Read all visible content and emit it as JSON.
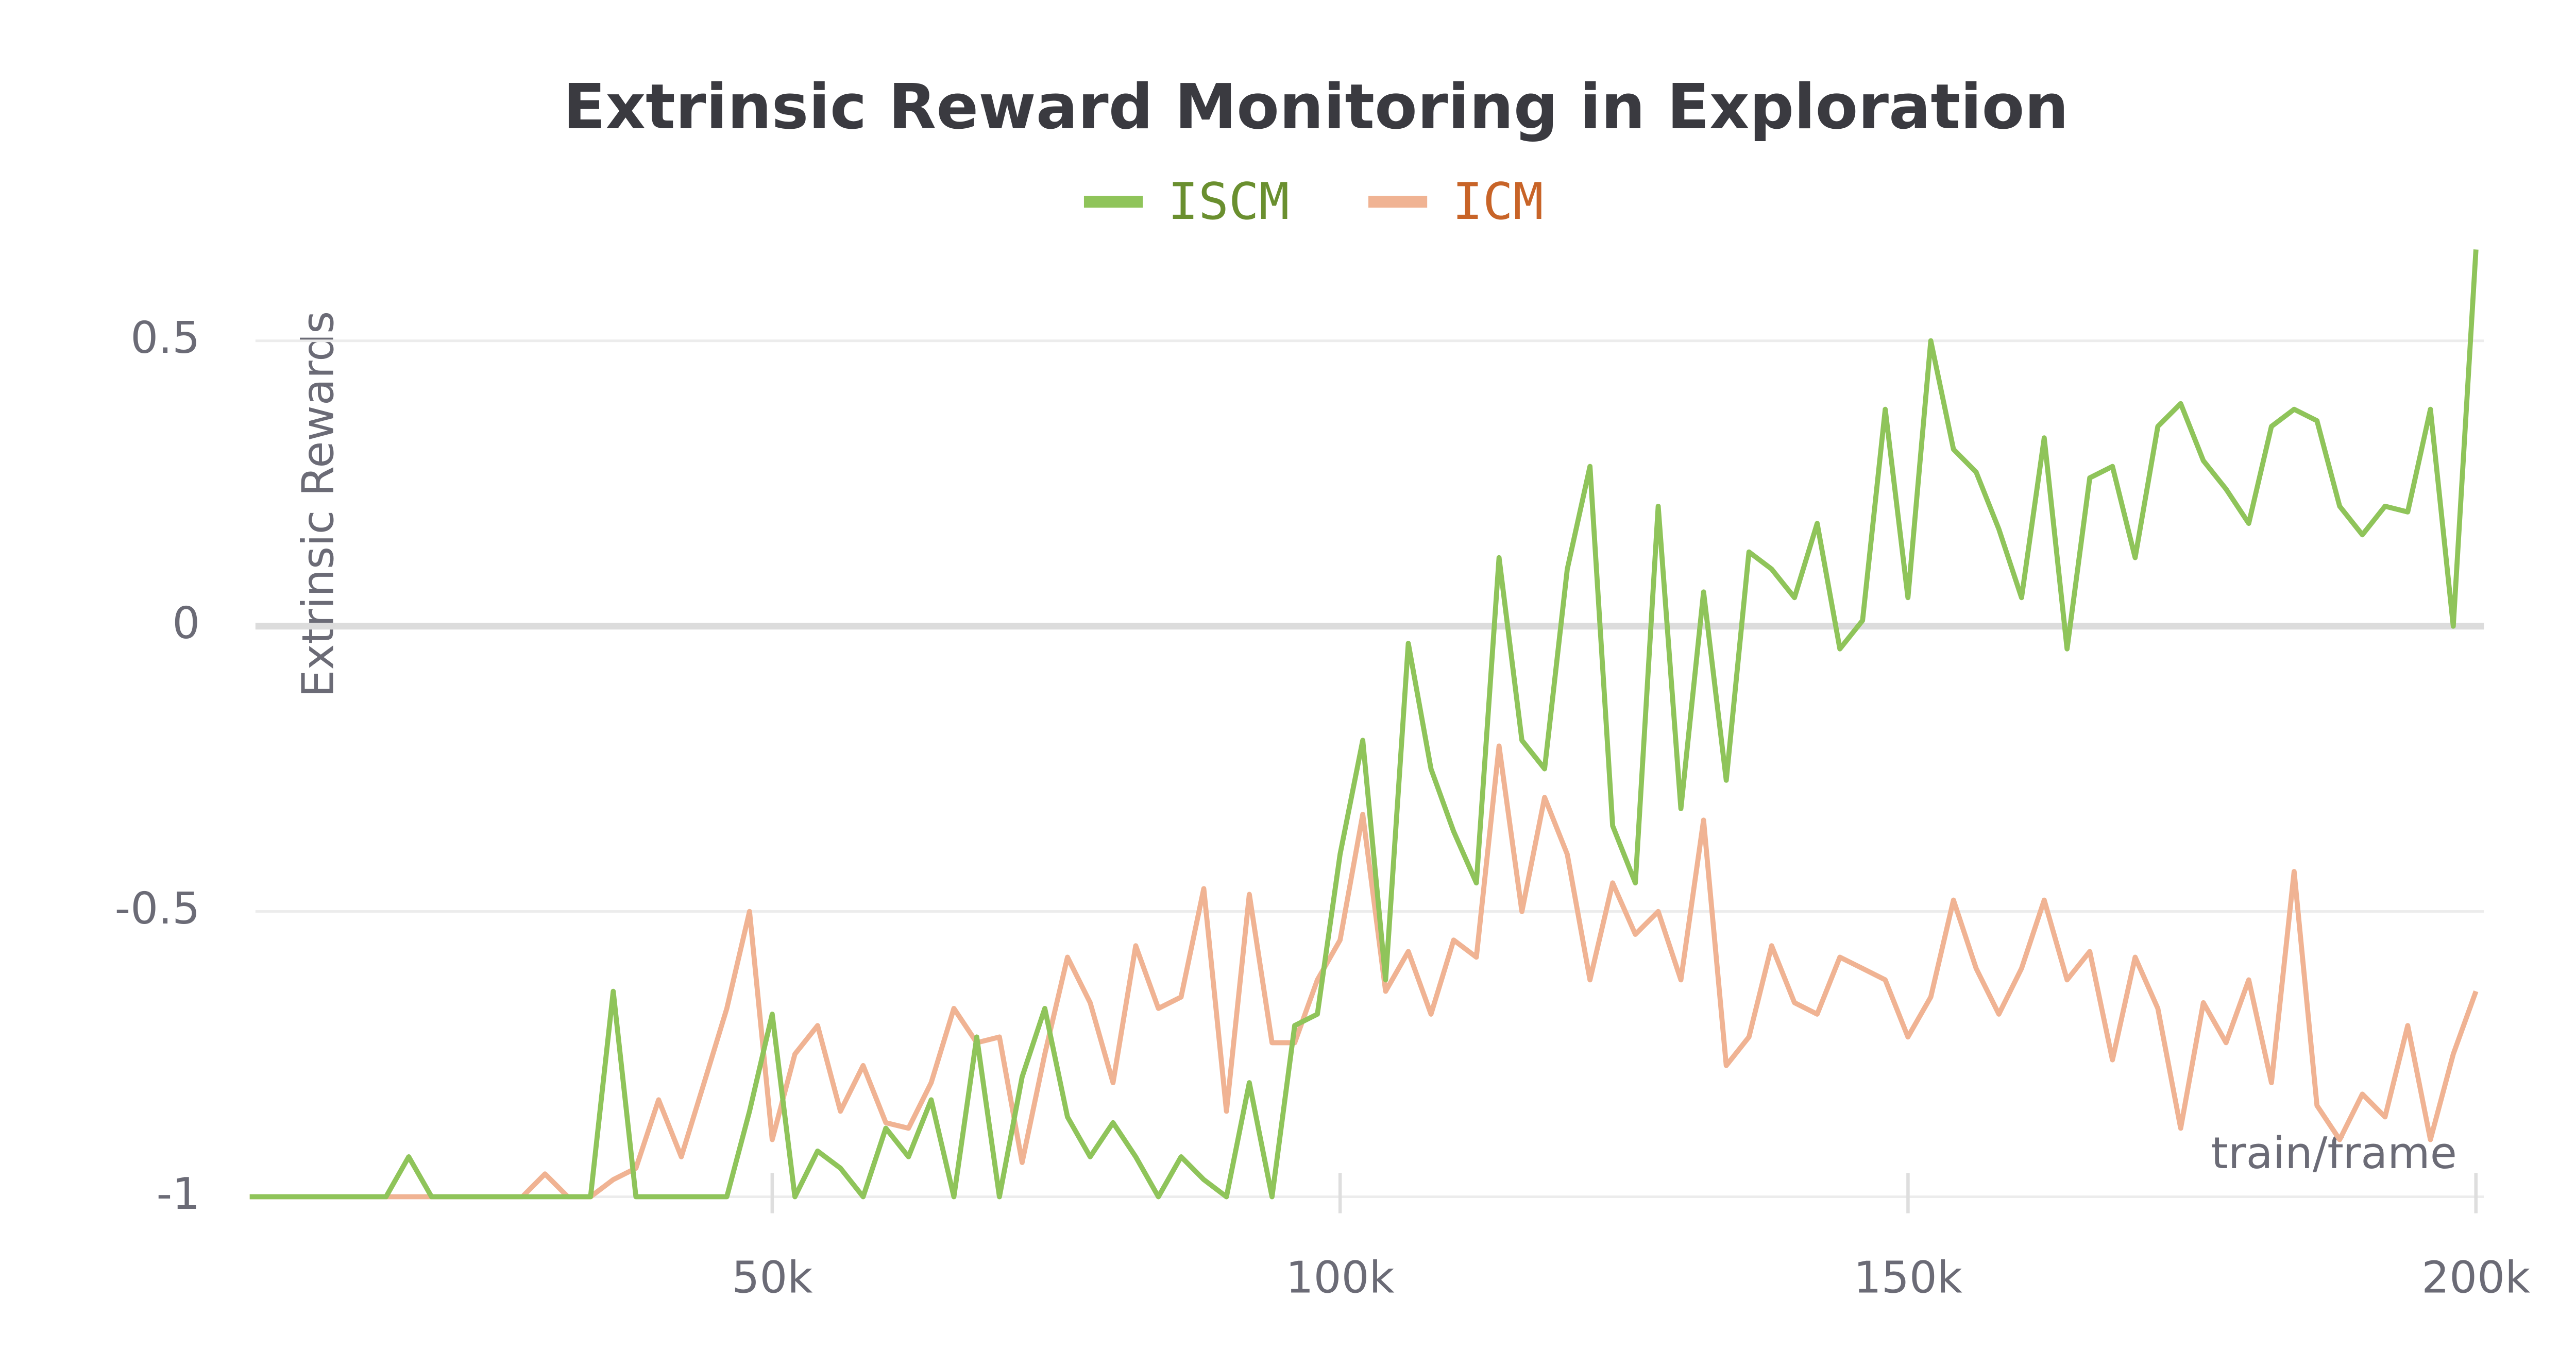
{
  "chart_data": {
    "type": "line",
    "title": "Extrinsic Reward Monitoring in Exploration",
    "y_label": "Extrinsic Rewards",
    "x_label": "train/frame",
    "x": [
      4000,
      6000,
      8000,
      10000,
      12000,
      14000,
      16000,
      18000,
      20000,
      22000,
      24000,
      26000,
      28000,
      30000,
      32000,
      34000,
      36000,
      38000,
      40000,
      42000,
      44000,
      46000,
      48000,
      50000,
      52000,
      54000,
      56000,
      58000,
      60000,
      62000,
      64000,
      66000,
      68000,
      70000,
      72000,
      74000,
      76000,
      78000,
      80000,
      82000,
      84000,
      86000,
      88000,
      90000,
      92000,
      94000,
      96000,
      98000,
      100000,
      102000,
      104000,
      106000,
      108000,
      110000,
      112000,
      114000,
      116000,
      118000,
      120000,
      122000,
      124000,
      126000,
      128000,
      130000,
      132000,
      134000,
      136000,
      138000,
      140000,
      142000,
      144000,
      146000,
      148000,
      150000,
      152000,
      154000,
      156000,
      158000,
      160000,
      162000,
      164000,
      166000,
      168000,
      170000,
      172000,
      174000,
      176000,
      178000,
      180000,
      182000,
      184000,
      186000,
      188000,
      190000,
      192000,
      194000,
      196000,
      198000,
      200000
    ],
    "series": [
      {
        "name": "ISCM",
        "color": "#8fc45a",
        "label_color": "#6a8f2f",
        "values": [
          -1,
          -1,
          -1,
          -1,
          -1,
          -1,
          -1,
          -0.93,
          -1,
          -1,
          -1,
          -1,
          -1,
          -1,
          -1,
          -1,
          -0.64,
          -1,
          -1,
          -1,
          -1,
          -1,
          -0.85,
          -0.68,
          -1,
          -0.92,
          -0.95,
          -1,
          -0.88,
          -0.93,
          -0.83,
          -1,
          -0.72,
          -1,
          -0.79,
          -0.67,
          -0.86,
          -0.93,
          -0.87,
          -0.93,
          -1,
          -0.93,
          -0.97,
          -1,
          -0.8,
          -1,
          -0.7,
          -0.68,
          -0.4,
          -0.2,
          -0.62,
          -0.03,
          -0.25,
          -0.36,
          -0.45,
          0.12,
          -0.2,
          -0.25,
          0.1,
          0.28,
          -0.35,
          -0.45,
          0.21,
          -0.32,
          0.06,
          -0.27,
          0.13,
          0.1,
          0.05,
          0.18,
          -0.04,
          0.01,
          0.38,
          0.05,
          0.5,
          0.31,
          0.27,
          0.17,
          0.05,
          0.33,
          -0.04,
          0.26,
          0.28,
          0.12,
          0.35,
          0.39,
          0.29,
          0.24,
          0.18,
          0.35,
          0.38,
          0.36,
          0.21,
          0.16,
          0.21,
          0.2,
          0.38,
          0,
          0.66
        ]
      },
      {
        "name": "ICM",
        "color": "#f0b393",
        "label_color": "#c86428",
        "values": [
          -1,
          -1,
          -1,
          -1,
          -1,
          -1,
          -1,
          -1,
          -1,
          -1,
          -1,
          -1,
          -1,
          -0.96,
          -1,
          -1,
          -0.97,
          -0.95,
          -0.83,
          -0.93,
          -0.8,
          -0.67,
          -0.5,
          -0.9,
          -0.75,
          -0.7,
          -0.85,
          -0.77,
          -0.87,
          -0.88,
          -0.8,
          -0.67,
          -0.73,
          -0.72,
          -0.94,
          -0.75,
          -0.58,
          -0.66,
          -0.8,
          -0.56,
          -0.67,
          -0.65,
          -0.46,
          -0.85,
          -0.47,
          -0.73,
          -0.73,
          -0.62,
          -0.55,
          -0.33,
          -0.64,
          -0.57,
          -0.68,
          -0.55,
          -0.58,
          -0.21,
          -0.5,
          -0.3,
          -0.4,
          -0.62,
          -0.45,
          -0.54,
          -0.5,
          -0.62,
          -0.34,
          -0.77,
          -0.72,
          -0.56,
          -0.66,
          -0.68,
          -0.58,
          -0.6,
          -0.62,
          -0.72,
          -0.65,
          -0.48,
          -0.6,
          -0.68,
          -0.6,
          -0.48,
          -0.62,
          -0.57,
          -0.76,
          -0.58,
          -0.67,
          -0.88,
          -0.66,
          -0.73,
          -0.62,
          -0.8,
          -0.43,
          -0.84,
          -0.9,
          -0.82,
          -0.86,
          -0.7,
          -0.9,
          -0.75,
          -0.64
        ]
      }
    ],
    "xlim": [
      4500,
      200700
    ],
    "ylim": [
      -1.02,
      0.67
    ],
    "xticks": [
      {
        "value": 50000,
        "label": "50k"
      },
      {
        "value": 100000,
        "label": "100k"
      },
      {
        "value": 150000,
        "label": "150k"
      },
      {
        "value": 200000,
        "label": "200k"
      }
    ],
    "yticks": [
      -1,
      -0.5,
      0,
      0.5
    ],
    "grid": true
  }
}
